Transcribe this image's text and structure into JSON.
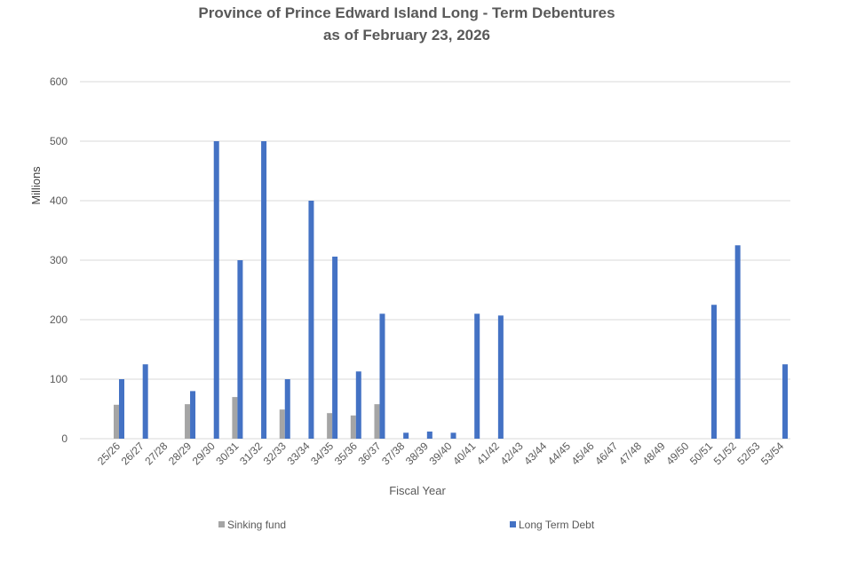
{
  "chart_data": {
    "type": "bar",
    "title": [
      "Province of Prince Edward Island Long - Term Debentures",
      "as of February 23, 2026"
    ],
    "xlabel": "Fiscal Year",
    "ylabel": "Millions",
    "ylim": [
      0,
      600
    ],
    "yticks": [
      0,
      100,
      200,
      300,
      400,
      500,
      600
    ],
    "grid": true,
    "legend_position": "bottom",
    "categories": [
      "25/26",
      "26/27",
      "27/28",
      "28/29",
      "29/30",
      "30/31",
      "31/32",
      "32/33",
      "33/34",
      "34/35",
      "35/36",
      "36/37",
      "37/38",
      "38/39",
      "39/40",
      "40/41",
      "41/42",
      "42/43",
      "43/44",
      "44/45",
      "45/46",
      "46/47",
      "47/48",
      "48/49",
      "49/50",
      "50/51",
      "51/52",
      "52/53",
      "53/54"
    ],
    "series": [
      {
        "name": "Sinking fund",
        "color": "#a5a5a5",
        "values": [
          57,
          0,
          0,
          58,
          0,
          70,
          0,
          49,
          0,
          43,
          39,
          58,
          0,
          0,
          0,
          0,
          0,
          0,
          0,
          0,
          0,
          0,
          0,
          0,
          0,
          0,
          0,
          0,
          0
        ]
      },
      {
        "name": "Long Term Debt",
        "color": "#4472c4",
        "values": [
          100,
          125,
          0,
          80,
          500,
          300,
          500,
          100,
          400,
          306,
          113,
          210,
          10,
          12,
          10,
          210,
          207,
          0,
          0,
          0,
          0,
          0,
          0,
          0,
          0,
          225,
          325,
          0,
          125
        ]
      }
    ]
  }
}
